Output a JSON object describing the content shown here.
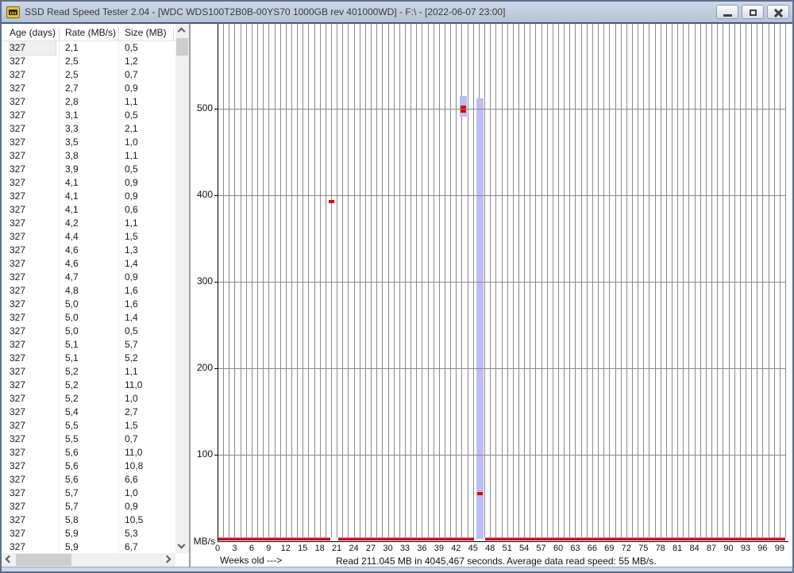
{
  "window": {
    "title": "SSD Read Speed Tester 2.04 - [WDC  WDS100T2B0B-00YS70 1000GB rev 401000WD] - F:\\ - [2022-06-07 23:00]",
    "icons": {
      "app": "ssd-drive-icon",
      "minimize": "minimize",
      "restore": "restore",
      "close": "close"
    }
  },
  "table": {
    "columns": [
      "Age (days)",
      "Rate (MB/s)",
      "Size (MB)"
    ],
    "selected_cell": [
      0,
      0
    ],
    "rows": [
      [
        "327",
        "2,1",
        "0,5"
      ],
      [
        "327",
        "2,5",
        "1,2"
      ],
      [
        "327",
        "2,5",
        "0,7"
      ],
      [
        "327",
        "2,7",
        "0,9"
      ],
      [
        "327",
        "2,8",
        "1,1"
      ],
      [
        "327",
        "3,1",
        "0,5"
      ],
      [
        "327",
        "3,3",
        "2,1"
      ],
      [
        "327",
        "3,5",
        "1,0"
      ],
      [
        "327",
        "3,8",
        "1,1"
      ],
      [
        "327",
        "3,9",
        "0,5"
      ],
      [
        "327",
        "4,1",
        "0,9"
      ],
      [
        "327",
        "4,1",
        "0,9"
      ],
      [
        "327",
        "4,1",
        "0,6"
      ],
      [
        "327",
        "4,2",
        "1,1"
      ],
      [
        "327",
        "4,4",
        "1,5"
      ],
      [
        "327",
        "4,6",
        "1,3"
      ],
      [
        "327",
        "4,6",
        "1,4"
      ],
      [
        "327",
        "4,7",
        "0,9"
      ],
      [
        "327",
        "4,8",
        "1,6"
      ],
      [
        "327",
        "5,0",
        "1,6"
      ],
      [
        "327",
        "5,0",
        "1,4"
      ],
      [
        "327",
        "5,0",
        "0,5"
      ],
      [
        "327",
        "5,1",
        "5,7"
      ],
      [
        "327",
        "5,1",
        "5,2"
      ],
      [
        "327",
        "5,2",
        "1,1"
      ],
      [
        "327",
        "5,2",
        "11,0"
      ],
      [
        "327",
        "5,2",
        "1,0"
      ],
      [
        "327",
        "5,4",
        "2,7"
      ],
      [
        "327",
        "5,5",
        "1,5"
      ],
      [
        "327",
        "5,5",
        "0,7"
      ],
      [
        "327",
        "5,6",
        "11,0"
      ],
      [
        "327",
        "5,6",
        "10,8"
      ],
      [
        "327",
        "5,6",
        "6,6"
      ],
      [
        "327",
        "5,7",
        "1,0"
      ],
      [
        "327",
        "5,7",
        "0,9"
      ],
      [
        "327",
        "5,8",
        "10,5"
      ],
      [
        "327",
        "5,9",
        "5,3"
      ],
      [
        "327",
        "5,9",
        "6,7"
      ]
    ]
  },
  "chart_data": {
    "type": "scatter",
    "xlabel": "Weeks old --->",
    "ylabel": "MB/s",
    "xlim": [
      0,
      100
    ],
    "ylim": [
      0,
      598
    ],
    "x_tick_labels": [
      0,
      3,
      6,
      9,
      12,
      15,
      18,
      21,
      24,
      27,
      30,
      33,
      36,
      39,
      42,
      45,
      48,
      51,
      54,
      57,
      60,
      63,
      66,
      69,
      72,
      75,
      78,
      81,
      84,
      87,
      90,
      93,
      96,
      99
    ],
    "y_tick_labels": [
      100,
      200,
      300,
      400,
      500
    ],
    "grid": true,
    "points": [
      {
        "week": 20.1,
        "mbps": 393
      },
      {
        "week": 43.35,
        "mbps": 502
      },
      {
        "week": 43.35,
        "mbps": 497
      },
      {
        "week": 46.2,
        "mbps": 55
      }
    ],
    "range_bars": [
      {
        "week": 43.35,
        "min": 491,
        "max": 515
      },
      {
        "week": 46.2,
        "min": 3,
        "max": 512
      }
    ],
    "low_speed_band": {
      "mbps_approx": 3,
      "segments": [
        [
          0,
          19.8
        ],
        [
          21.2,
          45.2
        ],
        [
          47.2,
          100
        ]
      ]
    },
    "colors": {
      "point": "#e00000",
      "band_top": "#eeaac0",
      "band_mid": "#e00024",
      "band_bottom": "#8a0010",
      "range_bar": "#bdbdf4",
      "grid": "#8a8a8a"
    }
  },
  "status": {
    "read_info": "Read 211.045 MB in 4045,467 seconds.",
    "average_info": "Average data read speed: 55 MB/s."
  }
}
